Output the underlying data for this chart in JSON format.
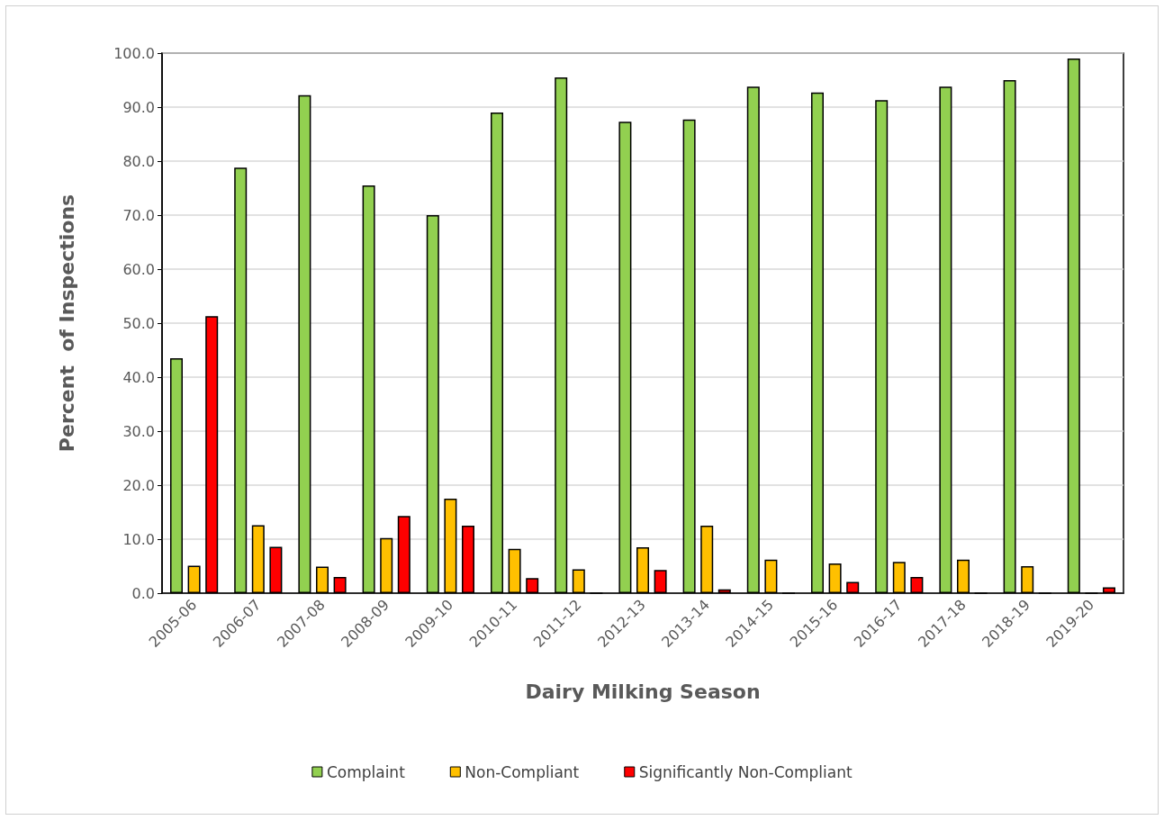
{
  "chart_data": {
    "type": "bar",
    "xlabel": "Dairy Milking Season",
    "ylabel": "Percent  of Inspections",
    "categories": [
      "2005-06",
      "2006-07",
      "2007-08",
      "2008-09",
      "2009-10",
      "2010-11",
      "2011-12",
      "2012-13",
      "2013-14",
      "2014-15",
      "2015-16",
      "2016-17",
      "2017-18",
      "2018-19",
      "2019-20"
    ],
    "series": [
      {
        "name": "Complaint",
        "color": "#92d050",
        "values": [
          43.5,
          78.8,
          92.2,
          75.5,
          70.0,
          89.0,
          95.5,
          87.3,
          87.7,
          93.8,
          92.7,
          91.3,
          93.8,
          95.0,
          99.0
        ]
      },
      {
        "name": "Non-Compliant",
        "color": "#ffc000",
        "values": [
          5.1,
          12.6,
          4.9,
          10.2,
          17.5,
          8.2,
          4.4,
          8.5,
          12.5,
          6.2,
          5.5,
          5.8,
          6.2,
          5.0,
          0
        ]
      },
      {
        "name": "Significantly Non-Compliant",
        "color": "#ff0000",
        "values": [
          51.3,
          8.6,
          3.0,
          14.3,
          12.5,
          2.8,
          0,
          4.3,
          0.7,
          0,
          2.1,
          3.0,
          0,
          0,
          1.1
        ]
      }
    ],
    "ylim": [
      0,
      100
    ],
    "yticks": [
      {
        "value": 0,
        "label": "0.0"
      },
      {
        "value": 10,
        "label": "10.0"
      },
      {
        "value": 20,
        "label": "20.0"
      },
      {
        "value": 30,
        "label": "30.0"
      },
      {
        "value": 40,
        "label": "40.0"
      },
      {
        "value": 50,
        "label": "50.0"
      },
      {
        "value": 60,
        "label": "60.0"
      },
      {
        "value": 70,
        "label": "70.0"
      },
      {
        "value": 80,
        "label": "80.0"
      },
      {
        "value": 90,
        "label": "90.0"
      },
      {
        "value": 100,
        "label": "100.0"
      }
    ],
    "grid": "y",
    "legend": "bottom"
  }
}
